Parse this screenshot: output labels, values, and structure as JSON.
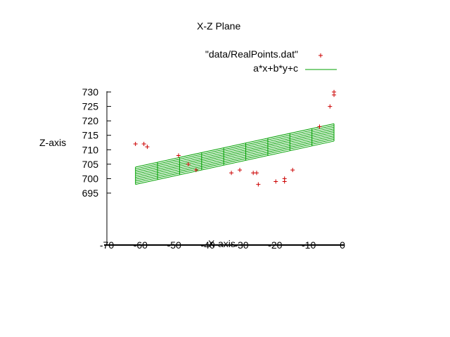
{
  "chart_data": {
    "type": "scatter",
    "title": "X-Z Plane",
    "xlabel": "X-axis",
    "ylabel": "Z-axis",
    "xlim": [
      -70,
      0
    ],
    "ylim": [
      695,
      730
    ],
    "x_ticks": [
      "-70",
      "-60",
      "-50",
      "-40",
      "-30",
      "-20",
      "-10",
      "0"
    ],
    "y_ticks": [
      "695",
      "700",
      "705",
      "710",
      "715",
      "720",
      "725",
      "730"
    ],
    "grid": false,
    "legend_position": "top-right",
    "colors": {
      "points": "#cc0000",
      "fit": "#00a000"
    },
    "series": [
      {
        "name": "\"data/RealPoints.dat\"",
        "marker": "+",
        "points": [
          {
            "x": -61.5,
            "z": 712
          },
          {
            "x": -59,
            "z": 712
          },
          {
            "x": -58,
            "z": 711
          },
          {
            "x": -48.7,
            "z": 708
          },
          {
            "x": -45.8,
            "z": 705
          },
          {
            "x": -43.5,
            "z": 703
          },
          {
            "x": -33,
            "z": 702
          },
          {
            "x": -30.5,
            "z": 703
          },
          {
            "x": -26.5,
            "z": 702
          },
          {
            "x": -25.5,
            "z": 702
          },
          {
            "x": -25,
            "z": 698
          },
          {
            "x": -19.8,
            "z": 699
          },
          {
            "x": -17.2,
            "z": 700
          },
          {
            "x": -17.2,
            "z": 699
          },
          {
            "x": -14.8,
            "z": 703
          },
          {
            "x": -6.8,
            "z": 718
          },
          {
            "x": -3.7,
            "z": 725
          },
          {
            "x": -2.5,
            "z": 729
          },
          {
            "x": -2.5,
            "z": 730
          }
        ]
      },
      {
        "name": "a*x+b*y+c",
        "type": "surface",
        "x_range": [
          -61.5,
          -2.5
        ],
        "z_front": [
          698,
          713
        ],
        "z_back": [
          704,
          719
        ]
      }
    ]
  }
}
